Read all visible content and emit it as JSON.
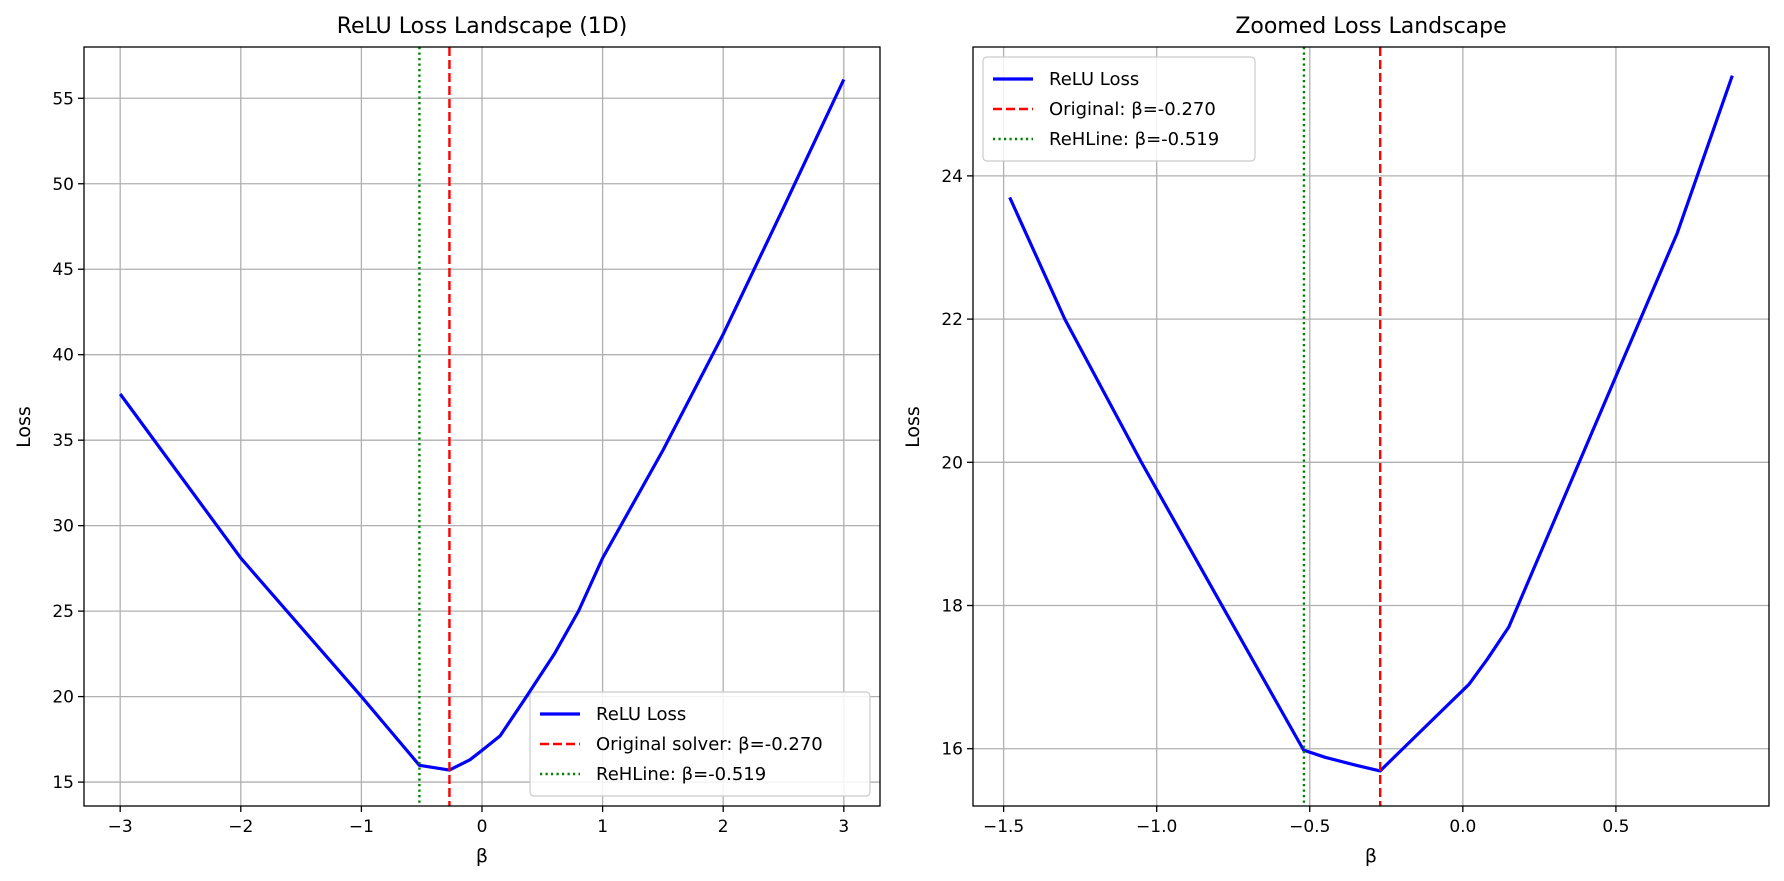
{
  "chart_data": [
    {
      "type": "line",
      "title": "ReLU Loss Landscape (1D)",
      "xlabel": "β",
      "ylabel": "Loss",
      "xlim": [
        -3.3,
        3.3
      ],
      "ylim": [
        13.6,
        58.0
      ],
      "xticks": [
        -3,
        -2,
        -1,
        0,
        1,
        2,
        3
      ],
      "xtick_labels": [
        "−3",
        "−2",
        "−1",
        "0",
        "1",
        "2",
        "3"
      ],
      "yticks": [
        15,
        20,
        25,
        30,
        35,
        40,
        45,
        50,
        55
      ],
      "ytick_labels": [
        "15",
        "20",
        "25",
        "30",
        "35",
        "40",
        "45",
        "50",
        "55"
      ],
      "grid": true,
      "legend_position": "lower-right",
      "series": [
        {
          "name": "ReLU Loss",
          "color": "#0000ff",
          "style": "solid",
          "x": [
            -3.0,
            -2.0,
            -1.0,
            -0.519,
            -0.27,
            -0.1,
            0.0,
            0.15,
            0.35,
            0.6,
            0.8,
            1.0,
            1.5,
            2.0,
            2.5,
            3.0
          ],
          "y": [
            37.7,
            28.1,
            20.0,
            15.98,
            15.7,
            16.3,
            16.85,
            17.7,
            19.8,
            22.5,
            25.0,
            28.1,
            34.4,
            41.2,
            48.6,
            56.1
          ]
        },
        {
          "name": "Original solver: β=-0.270",
          "color": "#ff0000",
          "style": "dashed",
          "vline_x": -0.27
        },
        {
          "name": "ReHLine: β=-0.519",
          "color": "#008000",
          "style": "dotted",
          "vline_x": -0.519
        }
      ]
    },
    {
      "type": "line",
      "title": "Zoomed Loss Landscape",
      "xlabel": "β",
      "ylabel": "Loss",
      "xlim": [
        -1.6,
        1.0
      ],
      "ylim": [
        15.2,
        25.8
      ],
      "xticks": [
        -1.5,
        -1.0,
        -0.5,
        0.0,
        0.5
      ],
      "xtick_labels": [
        "−1.5",
        "−1.0",
        "−0.5",
        "0.0",
        "0.5"
      ],
      "yticks": [
        16,
        18,
        20,
        22,
        24
      ],
      "ytick_labels": [
        "16",
        "18",
        "20",
        "22",
        "24"
      ],
      "grid": true,
      "legend_position": "upper-left",
      "series": [
        {
          "name": "ReLU Loss",
          "color": "#0000ff",
          "style": "solid",
          "x": [
            -1.48,
            -1.3,
            -1.05,
            -0.8,
            -0.52,
            -0.45,
            -0.35,
            -0.3,
            -0.27,
            -0.22,
            -0.1,
            0.02,
            0.08,
            0.15,
            0.3,
            0.5,
            0.7,
            0.88
          ],
          "y": [
            23.7,
            22.0,
            20.0,
            18.1,
            15.98,
            15.88,
            15.77,
            15.72,
            15.69,
            15.9,
            16.4,
            16.9,
            17.25,
            17.7,
            19.2,
            21.2,
            23.2,
            25.4
          ]
        },
        {
          "name": "Original: β=-0.270",
          "color": "#ff0000",
          "style": "dashed",
          "vline_x": -0.27
        },
        {
          "name": "ReHLine: β=-0.519",
          "color": "#008000",
          "style": "dotted",
          "vline_x": -0.519
        }
      ]
    }
  ]
}
